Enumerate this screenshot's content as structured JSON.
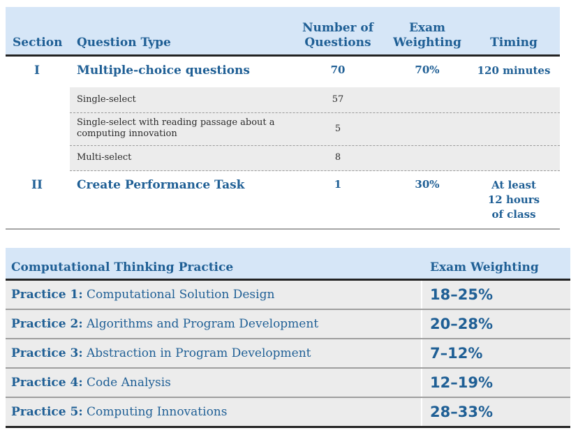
{
  "table1": {
    "headers": {
      "section": "Section",
      "question_type": "Question Type",
      "num_line1": "Number of",
      "num_line2": "Questions",
      "ew_line1": "Exam",
      "ew_line2": "Weighting",
      "timing": "Timing"
    },
    "rows": [
      {
        "section": "I",
        "question_type": "Multiple-choice questions",
        "number": "70",
        "weighting": "70%",
        "timing": "120 minutes",
        "subrows": [
          {
            "label": "Single-select",
            "number": "57"
          },
          {
            "label": "Single-select with reading passage about a computing innovation",
            "number": "5"
          },
          {
            "label": "Multi-select",
            "number": "8"
          }
        ]
      },
      {
        "section": "II",
        "question_type": "Create Performance Task",
        "number": "1",
        "weighting": "30%",
        "timing": "At least 12 hours of class"
      }
    ]
  },
  "table2": {
    "headers": {
      "practice": "Computational Thinking Practice",
      "weighting": "Exam Weighting"
    },
    "rows": [
      {
        "label": "Practice 1:",
        "name": "Computational Solution Design",
        "weighting": "18–25%"
      },
      {
        "label": "Practice 2:",
        "name": "Algorithms and Program Development",
        "weighting": "20–28%"
      },
      {
        "label": "Practice 3:",
        "name": "Abstraction in Program Development",
        "weighting": "7–12%"
      },
      {
        "label": "Practice 4:",
        "name": "Code Analysis",
        "weighting": "12–19%"
      },
      {
        "label": "Practice 5:",
        "name": "Computing Innovations",
        "weighting": "28–33%"
      }
    ]
  }
}
